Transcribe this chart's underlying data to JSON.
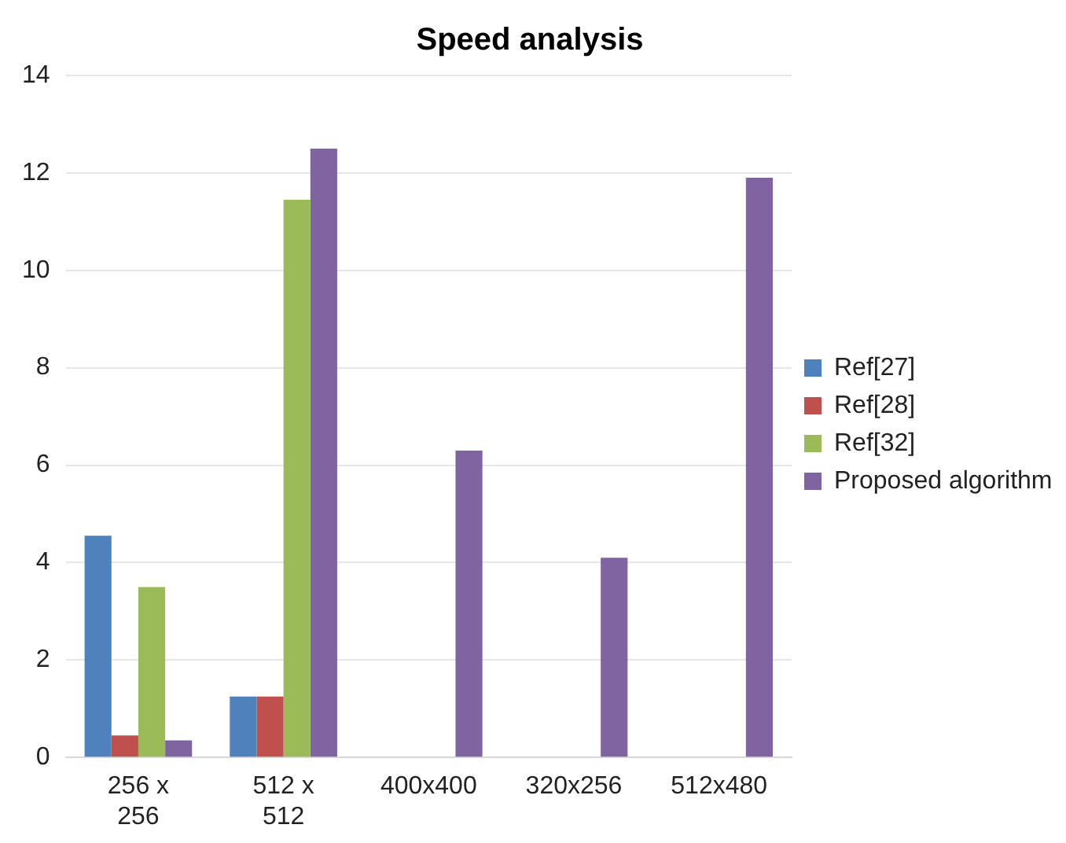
{
  "chart_data": {
    "type": "bar",
    "title": "Speed analysis",
    "categories": [
      "256 x 256",
      "512 x 512",
      "400x400",
      "320x256",
      "512x480"
    ],
    "series": [
      {
        "name": "Ref[27]",
        "color": "#4f81bd",
        "values": [
          4.55,
          1.25,
          null,
          null,
          null
        ]
      },
      {
        "name": "Ref[28]",
        "color": "#c0504d",
        "values": [
          0.45,
          1.25,
          null,
          null,
          null
        ]
      },
      {
        "name": "Ref[32]",
        "color": "#9bbb59",
        "values": [
          3.5,
          11.45,
          null,
          null,
          null
        ]
      },
      {
        "name": "Proposed algorithm",
        "color": "#8064a2",
        "values": [
          0.35,
          12.5,
          6.3,
          4.1,
          11.9
        ]
      }
    ],
    "ylim": [
      0,
      14
    ],
    "yticks": [
      0,
      2,
      4,
      6,
      8,
      10,
      12,
      14
    ],
    "grid": "y",
    "legend": "right"
  }
}
